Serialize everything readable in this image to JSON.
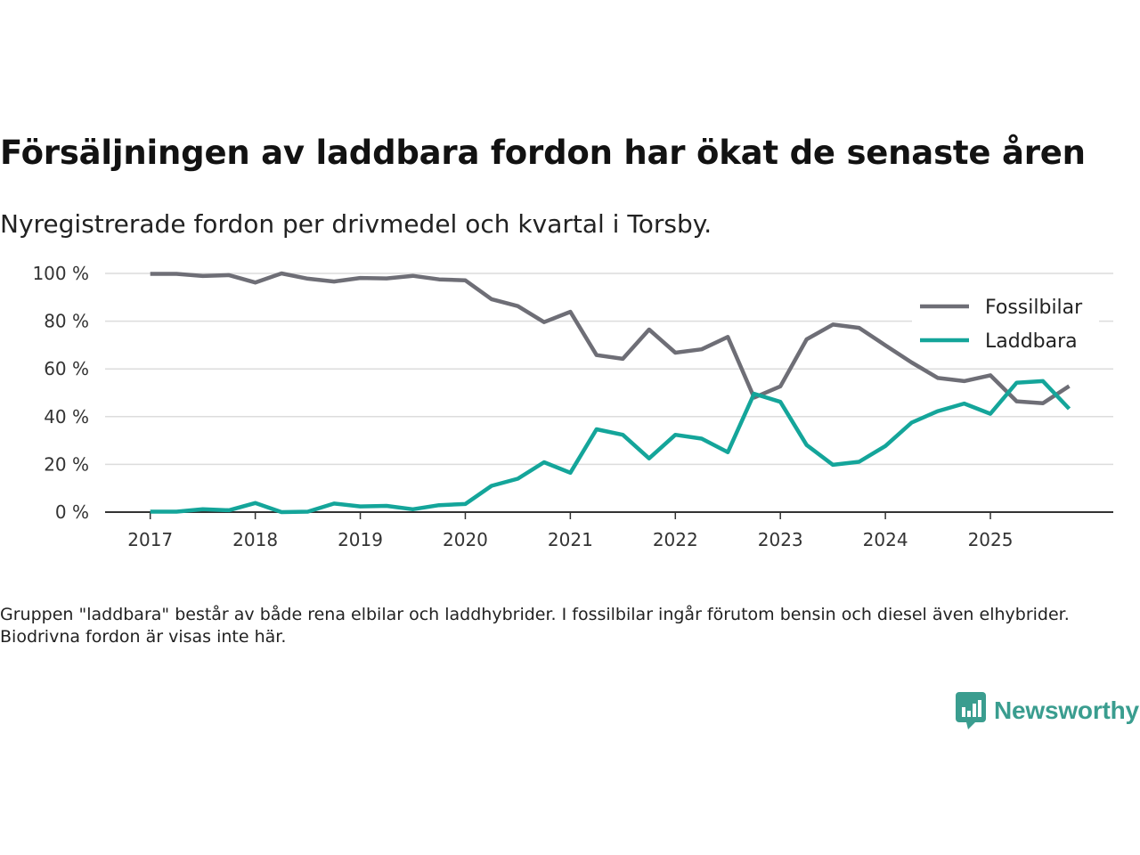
{
  "header": {
    "title": "Försäljningen av laddbara fordon har ökat de senaste åren",
    "subtitle": "Nyregistrerade fordon per drivmedel och kvartal i Torsby."
  },
  "footnote": "Gruppen \"laddbara\" består av både rena elbilar och laddhybrider. I fossilbilar ingår förutom bensin och diesel även elhybrider. Biodrivna fordon är visas inte här.",
  "brand": {
    "name": "Newsworthy",
    "icon": "newsworthy-logo-icon",
    "color": "#3a9d8f"
  },
  "chart_data": {
    "type": "line",
    "title": "Försäljningen av laddbara fordon har ökat de senaste åren",
    "xlabel": "",
    "ylabel": "",
    "ylim": [
      0,
      100
    ],
    "y_ticks": [
      0,
      20,
      40,
      60,
      80,
      100
    ],
    "y_tick_labels": [
      "0 %",
      "20 %",
      "40 %",
      "60 %",
      "80 %",
      "100 %"
    ],
    "x_ticks": [
      2017,
      2018,
      2019,
      2020,
      2021,
      2022,
      2023,
      2024,
      2025
    ],
    "x_tick_labels": [
      "2017",
      "2018",
      "2019",
      "2020",
      "2021",
      "2022",
      "2023",
      "2024",
      "2025"
    ],
    "xlim": [
      2016.57,
      2026.17
    ],
    "grid": true,
    "legend_position": "top-right",
    "x": [
      2017.0,
      2017.25,
      2017.5,
      2017.75,
      2018.0,
      2018.25,
      2018.5,
      2018.75,
      2019.0,
      2019.25,
      2019.5,
      2019.75,
      2020.0,
      2020.25,
      2020.5,
      2020.75,
      2021.0,
      2021.25,
      2021.5,
      2021.75,
      2022.0,
      2022.25,
      2022.5,
      2022.75,
      2023.0,
      2023.25,
      2023.5,
      2023.75,
      2024.0,
      2024.25,
      2024.5,
      2024.75,
      2025.0,
      2025.25,
      2025.5,
      2025.75
    ],
    "series": [
      {
        "name": "Fossilbilar",
        "color": "#6e6e76",
        "values": [
          99.8,
          99.8,
          98.9,
          99.3,
          96.2,
          100.0,
          97.8,
          96.6,
          98.1,
          97.9,
          99.0,
          97.5,
          97.1,
          89.2,
          86.3,
          79.6,
          83.9,
          65.8,
          64.2,
          76.5,
          66.8,
          68.2,
          73.4,
          48.0,
          52.7,
          72.4,
          78.6,
          77.2,
          69.9,
          62.7,
          56.2,
          54.9,
          57.3,
          46.4,
          45.6,
          52.8
        ]
      },
      {
        "name": "Laddbara",
        "color": "#14a59a",
        "values": [
          0.2,
          0.2,
          1.2,
          0.8,
          3.8,
          0.0,
          0.2,
          3.6,
          2.4,
          2.6,
          1.2,
          2.9,
          3.4,
          11.0,
          14.0,
          20.9,
          16.5,
          34.7,
          32.4,
          22.5,
          32.4,
          30.8,
          25.1,
          49.6,
          46.2,
          28.1,
          19.8,
          21.1,
          27.7,
          37.5,
          42.3,
          45.5,
          41.2,
          54.2,
          54.9,
          43.3
        ]
      }
    ]
  }
}
